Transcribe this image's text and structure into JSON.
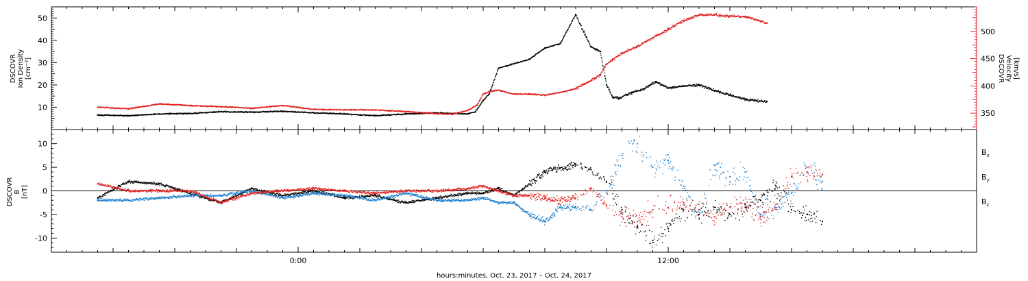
{
  "chart_data": [
    {
      "type": "scatter",
      "panel": "top",
      "ylabel_left": [
        "DSCOVR",
        "Ion Density",
        "[cm⁻³]"
      ],
      "ylabel_right": [
        "DSCOVR",
        "Velocity",
        "[km/s]"
      ],
      "ylim_left": [
        0,
        55
      ],
      "yticks_left": [
        "10",
        "20",
        "30",
        "40",
        "50"
      ],
      "ylim_right": [
        320,
        545
      ],
      "yticks_right": [
        "350",
        "400",
        "450",
        "500"
      ],
      "grid": false,
      "legend": "none",
      "series": [
        {
          "axis": "left",
          "color": "#000000",
          "x": [
            -6.5,
            -5.5,
            -4.5,
            -3.5,
            -2.5,
            -1.5,
            -0.5,
            0.5,
            1.5,
            2.5,
            3.5,
            4.5,
            5.5,
            5.75,
            6.0,
            6.2,
            6.5,
            7.0,
            7.5,
            8.0,
            8.5,
            9.0,
            9.5,
            9.8,
            10.0,
            10.2,
            10.4,
            10.8,
            11.2,
            11.6,
            12.0,
            12.5,
            13.0,
            13.5,
            14.0,
            14.5,
            15.2
          ],
          "y": [
            6.5,
            6.2,
            7.0,
            7.2,
            8.0,
            7.8,
            8.2,
            7.5,
            7.0,
            6.2,
            7.0,
            7.5,
            7.0,
            8.0,
            13.0,
            16.0,
            27.5,
            29.5,
            31.5,
            36.5,
            38.5,
            51.5,
            37.0,
            35.0,
            20.0,
            14.5,
            14.0,
            16.5,
            18.0,
            21.5,
            18.5,
            19.5,
            20.0,
            17.5,
            15.5,
            13.5,
            12.5
          ]
        },
        {
          "axis": "right",
          "color": "#e0201c",
          "x": [
            -6.5,
            -5.5,
            -4.5,
            -3.5,
            -2.5,
            -1.5,
            -0.5,
            0.5,
            1.5,
            2.5,
            3.5,
            4.5,
            5.0,
            5.5,
            5.8,
            6.0,
            6.2,
            6.5,
            7.0,
            7.5,
            8.0,
            8.5,
            9.0,
            9.5,
            9.8,
            10.0,
            10.2,
            10.5,
            11.0,
            11.5,
            12.0,
            12.5,
            13.0,
            13.5,
            14.0,
            14.5,
            15.2
          ],
          "y": [
            361,
            358,
            367,
            364,
            362,
            359,
            364,
            357,
            356,
            356,
            353,
            349,
            348,
            355,
            365,
            385,
            390,
            392,
            385,
            385,
            383,
            388,
            395,
            410,
            420,
            440,
            448,
            460,
            472,
            488,
            503,
            520,
            530,
            530,
            528,
            527,
            515
          ]
        }
      ]
    },
    {
      "type": "scatter",
      "panel": "bottom",
      "ylabel_left": [
        "DSCOVR",
        "B",
        "[nT]"
      ],
      "ylim": [
        -13,
        13
      ],
      "yticks": [
        "-10",
        "-5",
        "0",
        "5",
        "10"
      ],
      "zero_line": true,
      "grid": false,
      "legend": "right",
      "legend_entries": [
        {
          "label": "B",
          "sub": "x",
          "color": "#000000"
        },
        {
          "label": "B",
          "sub": "y",
          "color": "#1a7fcf"
        },
        {
          "label": "B",
          "sub": "z",
          "color": "#e0201c"
        }
      ],
      "series": [
        {
          "name": "Bx",
          "color": "#000000",
          "x": [
            -6.5,
            -5.5,
            -4.5,
            -3.5,
            -2.5,
            -1.5,
            -0.5,
            0.5,
            1.5,
            2.5,
            3.5,
            4.5,
            5.5,
            6.0,
            6.5,
            7.0,
            8.0,
            9.0,
            9.5,
            10.0,
            10.5,
            11.0,
            11.5,
            12.0,
            12.5,
            13.0,
            13.5,
            14.0,
            14.5,
            15.0,
            15.5,
            16.0,
            16.5,
            17.0
          ],
          "y": [
            -1.5,
            2.0,
            1.5,
            -0.5,
            -2.5,
            0.5,
            -1.0,
            0.0,
            -1.5,
            -1.0,
            -2.5,
            -1.5,
            -0.5,
            -0.5,
            0.5,
            -1.0,
            4.0,
            5.5,
            4.5,
            2.0,
            -4.0,
            -7.5,
            -10.5,
            -8.0,
            -4.0,
            -5.0,
            -3.5,
            -5.0,
            -3.5,
            -2.0,
            1.0,
            -4.0,
            -5.0,
            -6.5
          ]
        },
        {
          "name": "By",
          "color": "#1a7fcf",
          "x": [
            -6.5,
            -5.5,
            -4.5,
            -3.5,
            -2.5,
            -1.5,
            -0.5,
            0.5,
            1.5,
            2.5,
            3.5,
            4.5,
            5.5,
            6.0,
            6.5,
            7.0,
            7.5,
            8.0,
            8.5,
            9.0,
            9.5,
            10.0,
            10.5,
            11.0,
            11.5,
            12.0,
            12.5,
            13.0,
            13.5,
            14.0,
            14.5,
            15.0,
            15.5,
            16.0,
            16.5,
            17.0
          ],
          "y": [
            -2.0,
            -2.0,
            -1.5,
            -1.0,
            -1.0,
            0.0,
            -1.5,
            -0.5,
            -1.0,
            -2.0,
            -0.5,
            -2.0,
            -2.0,
            -1.5,
            -2.5,
            -2.5,
            -5.0,
            -6.5,
            -3.5,
            -3.5,
            -4.0,
            0.0,
            7.5,
            10.0,
            5.0,
            6.5,
            1.0,
            -6.0,
            5.5,
            3.0,
            4.0,
            -5.0,
            -3.5,
            -0.5,
            5.0,
            2.0
          ]
        },
        {
          "name": "Bz",
          "color": "#e0201c",
          "x": [
            -6.5,
            -5.5,
            -4.5,
            -3.5,
            -2.5,
            -1.5,
            -0.5,
            0.5,
            1.5,
            2.5,
            3.5,
            4.5,
            5.5,
            6.0,
            6.5,
            7.0,
            7.5,
            8.0,
            8.5,
            9.0,
            9.5,
            10.0,
            10.5,
            11.0,
            11.5,
            12.0,
            12.5,
            13.0,
            13.5,
            14.0,
            14.5,
            15.0,
            15.5,
            16.0,
            16.5,
            17.0
          ],
          "y": [
            1.5,
            0.0,
            0.0,
            0.0,
            -2.5,
            -0.5,
            0.0,
            0.5,
            0.0,
            -0.5,
            0.0,
            0.0,
            0.5,
            1.0,
            0.0,
            -1.0,
            -1.0,
            -1.5,
            -2.0,
            -1.5,
            0.5,
            -3.0,
            -5.5,
            -6.5,
            -4.0,
            -3.5,
            -2.5,
            -4.0,
            -5.5,
            -3.5,
            -3.0,
            -5.5,
            -4.0,
            3.0,
            4.0,
            3.5
          ]
        }
      ]
    }
  ],
  "x_axis": {
    "range": [
      -8,
      22
    ],
    "major_ticks": [
      {
        "x": 0,
        "label": "0:00"
      },
      {
        "x": 12,
        "label": "12:00"
      }
    ],
    "minor_interval": 2,
    "title": "hours:minutes, Oct. 23, 2017 – Oct. 24, 2017"
  }
}
